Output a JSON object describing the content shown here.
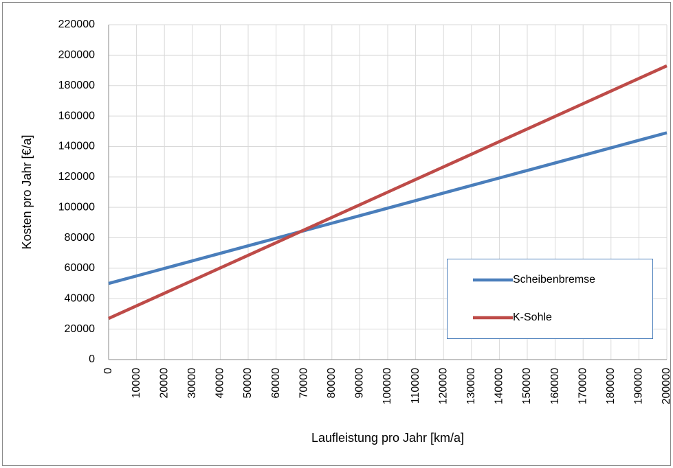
{
  "chart_data": {
    "type": "line",
    "x": [
      0,
      10000,
      20000,
      30000,
      40000,
      50000,
      60000,
      70000,
      80000,
      90000,
      100000,
      110000,
      120000,
      130000,
      140000,
      150000,
      160000,
      170000,
      180000,
      190000,
      200000
    ],
    "series": [
      {
        "name": "Scheibenbremse",
        "color": "#4a7ebb",
        "values": [
          50000,
          54950,
          59900,
          64850,
          69800,
          74750,
          79700,
          84650,
          89600,
          94550,
          99500,
          104450,
          109400,
          114350,
          119300,
          124250,
          129200,
          134150,
          139100,
          144050,
          149000
        ]
      },
      {
        "name": "K-Sohle",
        "color": "#be4b48",
        "values": [
          27000,
          35300,
          43600,
          51900,
          60200,
          68500,
          76800,
          85100,
          93400,
          101700,
          110000,
          118300,
          126600,
          134900,
          143200,
          151500,
          159800,
          168100,
          176400,
          184700,
          193000
        ]
      }
    ],
    "xlabel": "Laufleistung pro Jahr [km/a]",
    "ylabel": "Kosten pro Jahr [€/a]",
    "xlim": [
      0,
      200000
    ],
    "xticks": [
      0,
      10000,
      20000,
      30000,
      40000,
      50000,
      60000,
      70000,
      80000,
      90000,
      100000,
      110000,
      120000,
      130000,
      140000,
      150000,
      160000,
      170000,
      180000,
      190000,
      200000
    ],
    "ylim": [
      0,
      220000
    ],
    "yticks": [
      0,
      20000,
      40000,
      60000,
      80000,
      100000,
      120000,
      140000,
      160000,
      180000,
      200000,
      220000
    ],
    "grid": true,
    "legend": "right"
  }
}
